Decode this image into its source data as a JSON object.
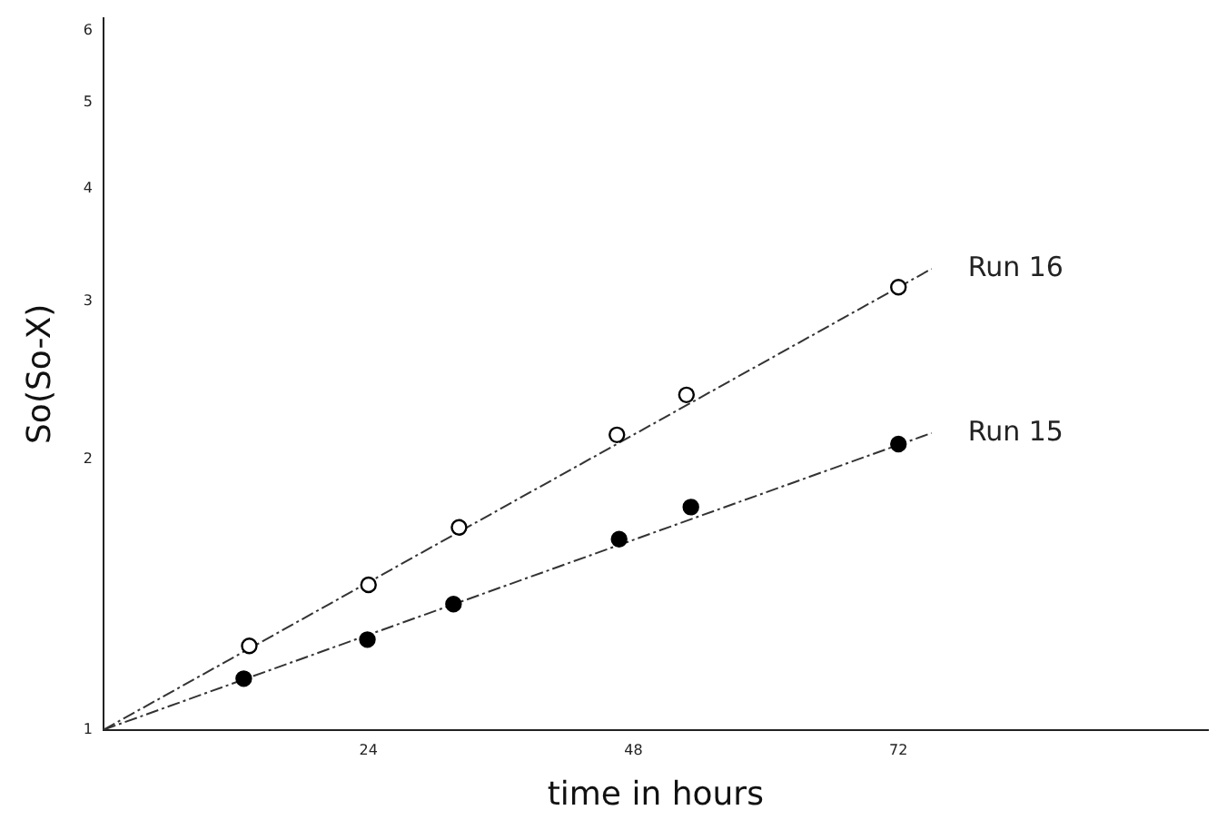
{
  "chart_data": {
    "type": "scatter",
    "xlabel": "time in hours",
    "ylabel": "So(So-X)",
    "log": "y",
    "xlim": [
      0,
      100
    ],
    "ylim": [
      1,
      6.2
    ],
    "xticks": [
      24,
      48,
      72
    ],
    "yticks": [
      1,
      2,
      3,
      4,
      5,
      6
    ],
    "grid": false,
    "legend": false,
    "series": [
      {
        "color": "#000000",
        "marker": "circle",
        "x": [
          13.2,
          24,
          32.2,
          46.5,
          52.8,
          72
        ],
        "values": [
          1.24,
          1.45,
          1.68,
          2.13,
          2.36,
          3.11
        ]
      },
      {
        "color": "#000000",
        "marker": "circle",
        "x": [
          12.7,
          23.9,
          31.7,
          46.7,
          53.2,
          72
        ],
        "values": [
          1.14,
          1.26,
          1.38,
          1.63,
          1.77,
          2.08
        ]
      },
      {
        "type": "line",
        "name": "Run 16",
        "color": "#333333",
        "marker": "none",
        "line_style": "dashed",
        "x": [
          0,
          75
        ],
        "values": [
          1,
          3.26
        ]
      },
      {
        "type": "line",
        "name": "Run 15",
        "color": "#333333",
        "marker": "none",
        "line_style": "dashed",
        "x": [
          0,
          75
        ],
        "values": [
          1,
          2.14
        ]
      }
    ]
  }
}
